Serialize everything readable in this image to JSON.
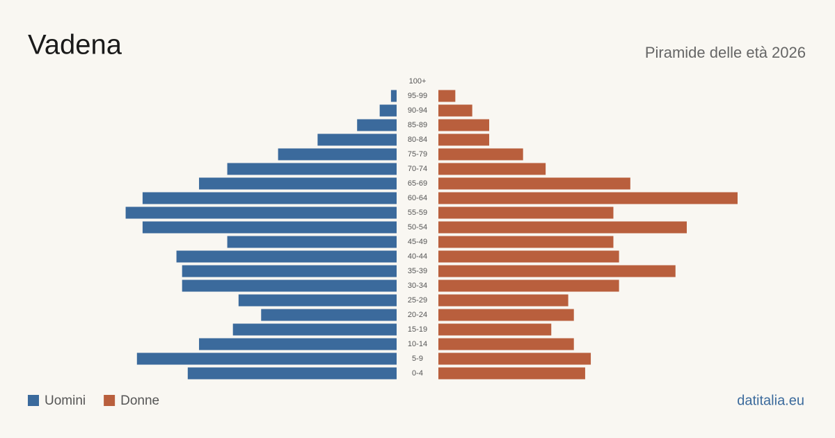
{
  "chart_data": {
    "type": "pyramid",
    "title": "Vadena",
    "subtitle": "Piramide delle età 2026",
    "categories": [
      "100+",
      "95-99",
      "90-94",
      "85-89",
      "80-84",
      "75-79",
      "70-74",
      "65-69",
      "60-64",
      "55-59",
      "50-54",
      "45-49",
      "40-44",
      "35-39",
      "30-34",
      "25-29",
      "20-24",
      "15-19",
      "10-14",
      "5-9",
      "0-4"
    ],
    "series": [
      {
        "name": "Uomini",
        "color": "#3b6a9c",
        "values": [
          0,
          1,
          3,
          7,
          14,
          21,
          30,
          35,
          45,
          48,
          45,
          30,
          39,
          38,
          38,
          28,
          24,
          29,
          35,
          46,
          37
        ]
      },
      {
        "name": "Donne",
        "color": "#b95f3d",
        "values": [
          0,
          3,
          6,
          9,
          9,
          15,
          19,
          34,
          53,
          31,
          44,
          31,
          32,
          42,
          32,
          23,
          24,
          20,
          24,
          27,
          26
        ]
      }
    ],
    "source": "datitalia.eu"
  }
}
